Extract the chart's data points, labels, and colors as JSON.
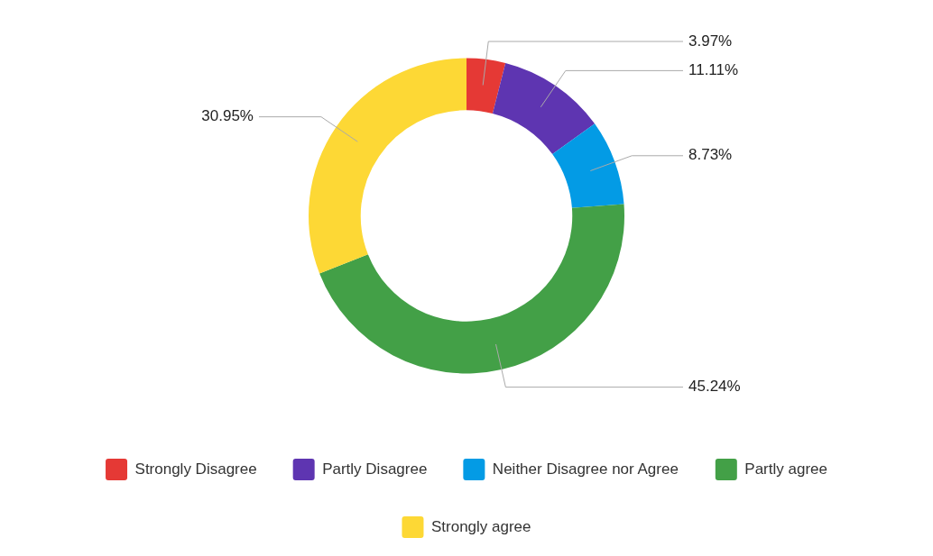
{
  "chart_data": {
    "type": "donut",
    "categories": [
      "Strongly Disagree",
      "Partly Disagree",
      "Neither Disagree nor Agree",
      "Partly agree",
      "Strongly agree"
    ],
    "values": [
      3.97,
      11.11,
      8.73,
      45.24,
      30.95
    ],
    "value_labels": [
      "3.97%",
      "11.11%",
      "8.73%",
      "45.24%",
      "30.95%"
    ],
    "colors": [
      "#e53935",
      "#5e35b1",
      "#039be5",
      "#43a047",
      "#fdd835"
    ],
    "legend": "bottom"
  }
}
